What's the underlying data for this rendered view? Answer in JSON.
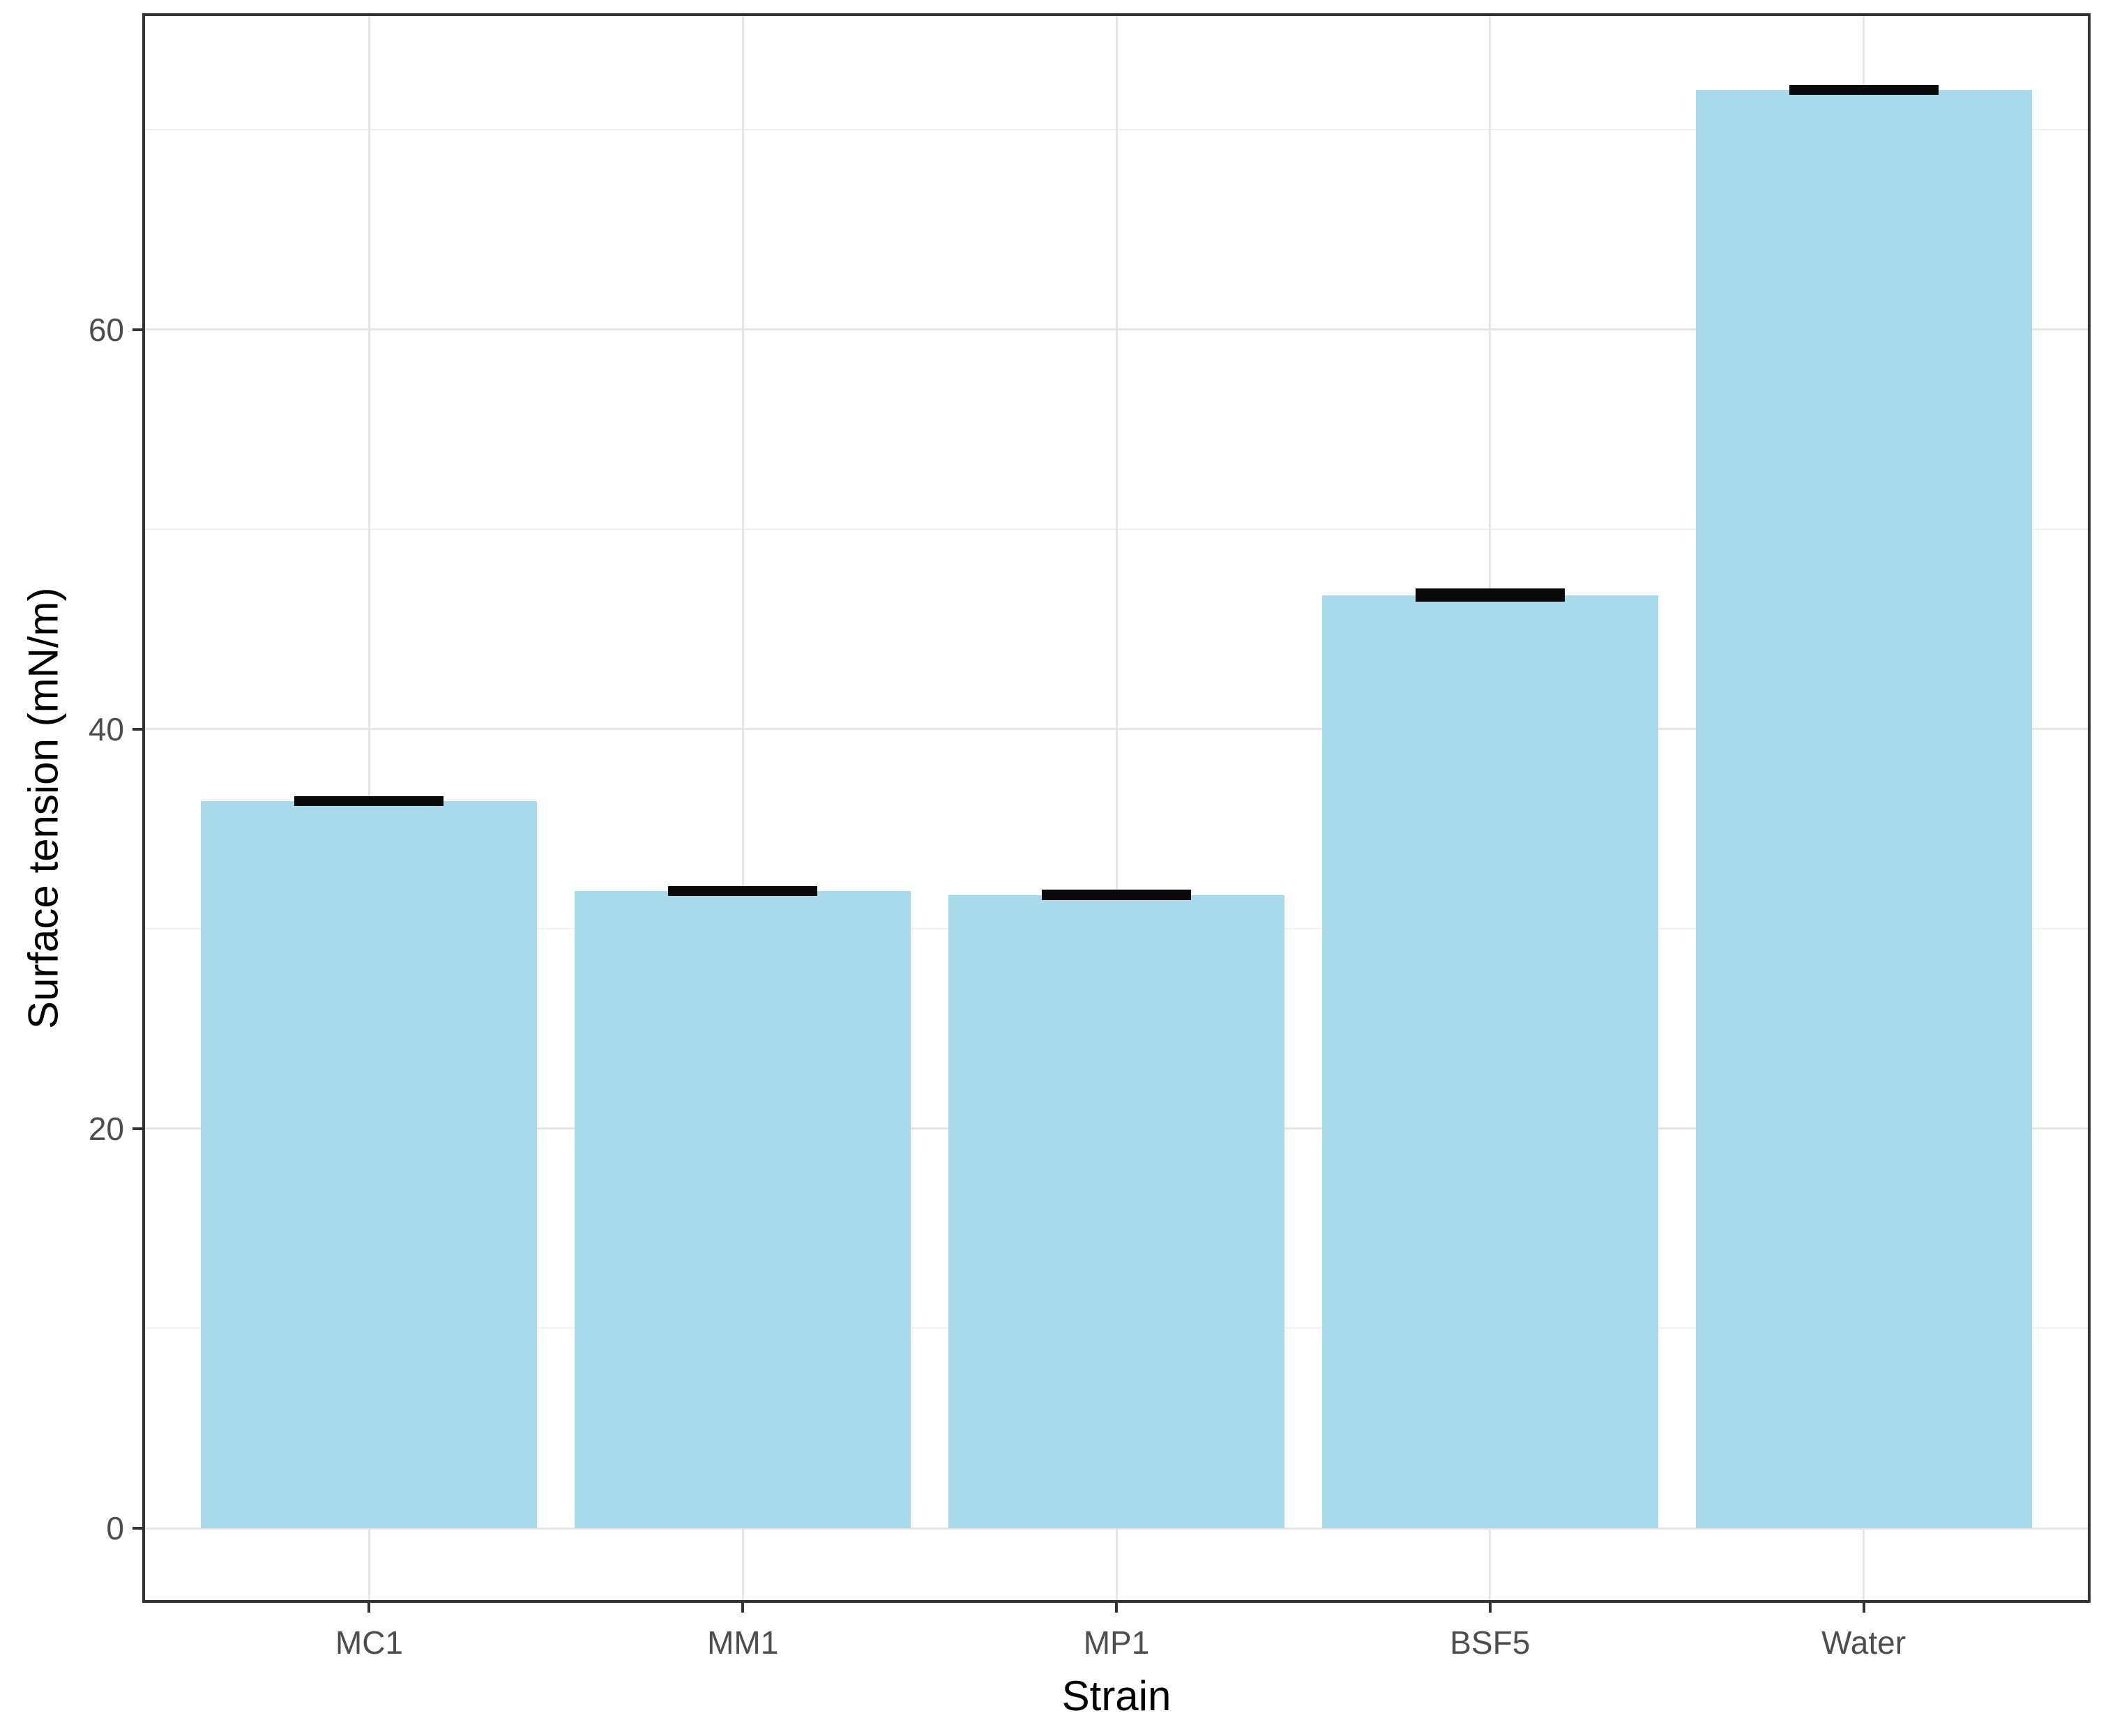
{
  "chart_data": {
    "type": "bar",
    "title": "",
    "xlabel": "Strain",
    "ylabel": "Surface tension (mN/m)",
    "categories": [
      "MC1",
      "MM1",
      "MP1",
      "BSF5",
      "Water"
    ],
    "values": [
      36.4,
      31.9,
      31.7,
      46.7,
      72.0
    ],
    "errors": [
      0.25,
      0.25,
      0.25,
      0.33,
      0.25
    ],
    "yticks": [
      0,
      20,
      40,
      60
    ],
    "ytick_labels": [
      "0",
      "20",
      "40",
      "60"
    ],
    "yticks_minor": [
      10,
      30,
      50,
      70
    ],
    "ylim": [
      -3.6,
      75.7
    ],
    "grid": "horizontal major and minor lines, vertical line at each category center",
    "legend": "none",
    "colors": {
      "bar_fill": "#a5d9eb",
      "error_bar": "#0a0a0a",
      "grid_major": "#e6e6e6",
      "grid_minor": "#f0f0f0",
      "panel_border": "#333333",
      "tick_mark": "#333333",
      "tick_text": "#4d4d4d",
      "title_text": "#000000",
      "background": "#ffffff"
    }
  }
}
